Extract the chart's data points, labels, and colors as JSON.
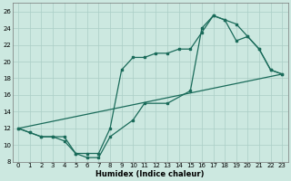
{
  "xlabel": "Humidex (Indice chaleur)",
  "bg_color": "#cce8e0",
  "grid_color": "#aacec6",
  "line_color": "#1a6b5a",
  "xlim": [
    -0.5,
    23.5
  ],
  "ylim": [
    8,
    27
  ],
  "xticks": [
    0,
    1,
    2,
    3,
    4,
    5,
    6,
    7,
    8,
    9,
    10,
    11,
    12,
    13,
    14,
    15,
    16,
    17,
    18,
    19,
    20,
    21,
    22,
    23
  ],
  "yticks": [
    8,
    10,
    12,
    14,
    16,
    18,
    20,
    22,
    24,
    26
  ],
  "line1_x": [
    0,
    1,
    2,
    3,
    4,
    5,
    6,
    7,
    8,
    9,
    10,
    11,
    12,
    13,
    14,
    15,
    16,
    17,
    18,
    19,
    20,
    21,
    22,
    23
  ],
  "line1_y": [
    12,
    11.5,
    11,
    11,
    11,
    9,
    9,
    9,
    12,
    19,
    20.5,
    20.5,
    21,
    21,
    21.5,
    21.5,
    23.5,
    25.5,
    25,
    22.5,
    23,
    21.5,
    19,
    18.5
  ],
  "line2_x": [
    0,
    1,
    2,
    3,
    4,
    5,
    6,
    7,
    8,
    10,
    11,
    13,
    15,
    16,
    17,
    18,
    19,
    20,
    21,
    22,
    23
  ],
  "line2_y": [
    12,
    11.5,
    11,
    11,
    10.5,
    9,
    8.5,
    8.5,
    11,
    13,
    15,
    15,
    16.5,
    24,
    25.5,
    25,
    24.5,
    23,
    21.5,
    19,
    18.5
  ],
  "line3_x": [
    0,
    23
  ],
  "line3_y": [
    12,
    18.5
  ]
}
